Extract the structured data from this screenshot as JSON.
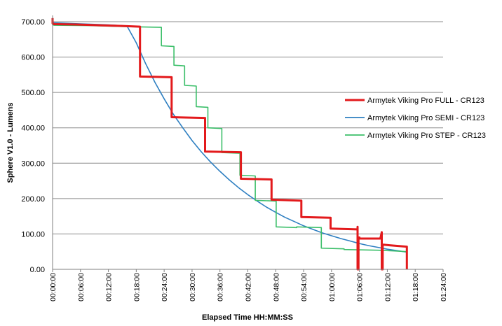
{
  "chart_data": {
    "type": "line",
    "xlabel": "Elapsed Time HH:MM:SS",
    "ylabel": "Sphere V1.0 - Lumens",
    "ylim": [
      0,
      700
    ],
    "yticks": [
      "0.00",
      "100.00",
      "200.00",
      "300.00",
      "400.00",
      "500.00",
      "600.00",
      "700.00"
    ],
    "xlim_minutes": [
      0,
      84
    ],
    "xticks": [
      "00:00:00",
      "00:06:00",
      "00:12:00",
      "00:18:00",
      "00:24:00",
      "00:30:00",
      "00:36:00",
      "00:42:00",
      "00:48:00",
      "00:54:00",
      "01:00:00",
      "01:06:00",
      "01:12:00",
      "01:18:00",
      "01:24:00"
    ],
    "grid": "horizontal",
    "legend_position": "right",
    "series": [
      {
        "name": "Armytek Viking Pro FULL - CR123",
        "color": "#e31a1c",
        "x_minutes": [
          0,
          0,
          0.3,
          5,
          10,
          15,
          18.8,
          18.8,
          25.6,
          25.6,
          32.8,
          32.8,
          40.5,
          40.5,
          47.1,
          47.1,
          53.5,
          53.5,
          59.8,
          59.8,
          65.6,
          65.6,
          65.6,
          65.8,
          65.8,
          66,
          66,
          70.5,
          70.8,
          70.8,
          71,
          71,
          72.5,
          76.2,
          76.2
        ],
        "y": [
          710,
          695,
          693,
          692,
          690,
          688,
          686,
          545,
          543,
          430,
          428,
          333,
          331,
          256,
          254,
          197,
          194,
          148,
          146,
          115,
          113,
          120,
          0,
          0,
          90,
          90,
          87,
          87,
          105,
          0,
          0,
          70,
          68,
          64,
          0
        ]
      },
      {
        "name": "Armytek Viking Pro SEMI - CR123",
        "color": "#2e7fc1",
        "x_minutes": [
          0,
          4,
          8,
          12,
          16,
          18,
          20,
          22,
          24,
          26,
          28,
          30,
          32,
          34,
          36,
          38,
          40,
          42,
          44,
          46,
          48,
          50,
          52,
          54,
          56,
          58,
          60,
          62,
          64,
          66,
          68,
          70,
          72,
          74,
          76
        ],
        "y": [
          697,
          695,
          693,
          691,
          688,
          640,
          582,
          529,
          482,
          438,
          400,
          364,
          332,
          303,
          277,
          253,
          231,
          211,
          193,
          176,
          161,
          147,
          135,
          123,
          113,
          103,
          95,
          87,
          80,
          73,
          67,
          62,
          57,
          53,
          49
        ]
      },
      {
        "name": "Armytek Viking Pro STEP - CR123",
        "color": "#3cbf6a",
        "x_minutes": [
          0,
          0,
          0.3,
          8,
          16,
          23.4,
          23.4,
          26.1,
          26.1,
          28.4,
          28.4,
          30.9,
          30.9,
          33.4,
          33.4,
          36.4,
          36.4,
          40.3,
          40.3,
          43.6,
          43.6,
          48.1,
          48.1,
          52.5,
          52.5,
          57.8,
          57.8,
          62.7,
          62.7,
          66.5,
          70,
          73.5,
          76.2
        ],
        "y": [
          710,
          692,
          690,
          689,
          686,
          684,
          632,
          630,
          577,
          575,
          520,
          518,
          460,
          458,
          400,
          398,
          330,
          328,
          266,
          264,
          195,
          193,
          120,
          118,
          120,
          118,
          60,
          58,
          56,
          55,
          54,
          52,
          50
        ]
      }
    ]
  }
}
